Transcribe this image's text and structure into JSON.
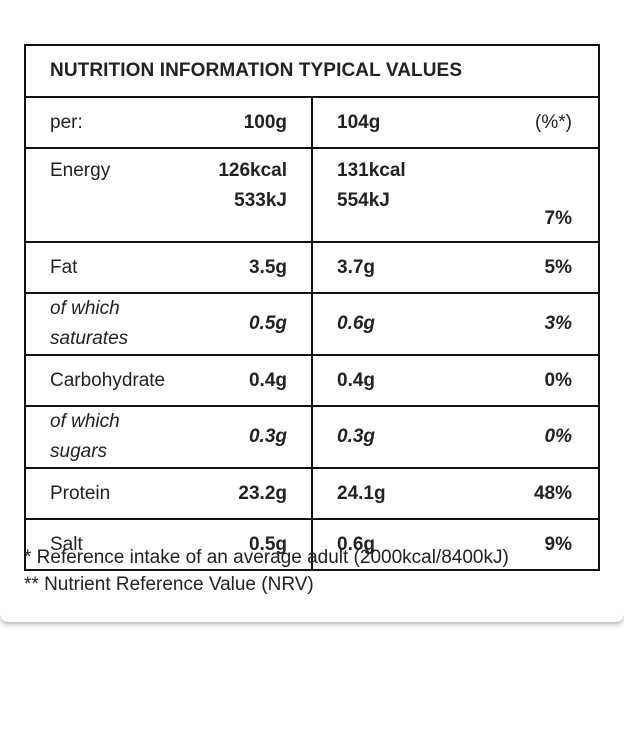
{
  "title": "NUTRITION INFORMATION TYPICAL VALUES",
  "header": {
    "label": "per:",
    "col_100": "100g",
    "col_104": "104g",
    "col_pct": "(%*)"
  },
  "energy": {
    "label": "Energy",
    "kcal_100": "126kcal",
    "kj_100": "533kJ",
    "kcal_104": "131kcal",
    "kj_104": "554kJ",
    "pct": "7%"
  },
  "rows": [
    {
      "label": "Fat",
      "v100": "3.5g",
      "v104": "3.7g",
      "pct": "5%"
    },
    {
      "label": "of which saturates",
      "v100": "0.5g",
      "v104": "0.6g",
      "pct": "3%"
    },
    {
      "label": "Carbohydrate",
      "v100": "0.4g",
      "v104": "0.4g",
      "pct": "0%"
    },
    {
      "label": "of which sugars",
      "v100": "0.3g",
      "v104": "0.3g",
      "pct": "0%"
    },
    {
      "label": "Protein",
      "v100": "23.2g",
      "v104": "24.1g",
      "pct": "48%"
    },
    {
      "label": "Salt",
      "v100": "0.5g",
      "v104": "0.6g",
      "pct": "9%"
    }
  ],
  "footnotes": {
    "reference": "* Reference intake of an average adult (2000kcal/8400kJ)",
    "nrv": "** Nutrient Reference Value (NRV)"
  }
}
